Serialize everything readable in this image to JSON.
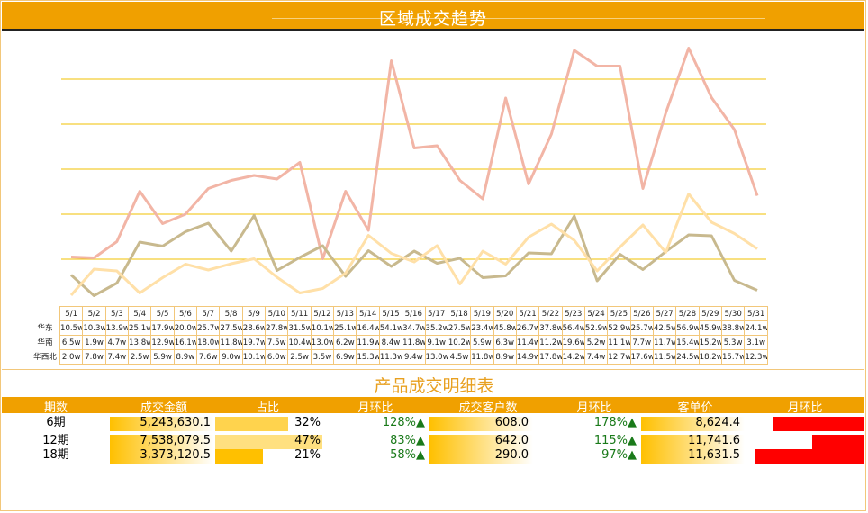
{
  "header": {
    "title": "区域成交趋势"
  },
  "chart_data": {
    "type": "line",
    "title": "区域成交趋势",
    "categories": [
      "5/1",
      "5/2",
      "5/3",
      "5/4",
      "5/5",
      "5/6",
      "5/7",
      "5/8",
      "5/9",
      "5/10",
      "5/11",
      "5/12",
      "5/13",
      "5/14",
      "5/15",
      "5/16",
      "5/17",
      "5/18",
      "5/19",
      "5/20",
      "5/21",
      "5/22",
      "5/23",
      "5/24",
      "5/25",
      "5/26",
      "5/27",
      "5/28",
      "5/29",
      "5/30",
      "5/31"
    ],
    "series": [
      {
        "name": "华东",
        "color": "#f2b5a6",
        "values": [
          10.5,
          10.3,
          13.9,
          25.1,
          17.9,
          20.0,
          25.7,
          27.5,
          28.6,
          27.8,
          31.5,
          10.1,
          25.1,
          16.4,
          54.1,
          34.7,
          35.2,
          27.5,
          23.4,
          45.8,
          26.7,
          37.8,
          56.4,
          52.9,
          52.9,
          25.7,
          42.5,
          56.9,
          45.9,
          38.8,
          24.1
        ],
        "labels": [
          "10.5w",
          "10.3w",
          "13.9w",
          "25.1w",
          "17.9w",
          "20.0w",
          "25.7w",
          "27.5w",
          "28.6w",
          "27.8w",
          "31.5w",
          "10.1w",
          "25.1w",
          "16.4w",
          "54.1w",
          "34.7w",
          "35.2w",
          "27.5w",
          "23.4w",
          "45.8w",
          "26.7w",
          "37.8w",
          "56.4w",
          "52.9w",
          "52.9w",
          "25.7w",
          "42.5w",
          "56.9w",
          "45.9w",
          "38.8w",
          "24.1w"
        ]
      },
      {
        "name": "华南",
        "color": "#c8b98e",
        "values": [
          6.5,
          1.9,
          4.7,
          13.8,
          12.9,
          16.1,
          18.0,
          11.8,
          19.7,
          7.5,
          10.4,
          13.0,
          6.2,
          11.9,
          8.4,
          11.8,
          9.1,
          10.2,
          5.9,
          6.3,
          11.4,
          11.2,
          19.6,
          5.2,
          11.1,
          7.7,
          11.7,
          15.4,
          15.2,
          5.3,
          3.1
        ],
        "labels": [
          "6.5w",
          "1.9w",
          "4.7w",
          "13.8w",
          "12.9w",
          "16.1w",
          "18.0w",
          "11.8w",
          "19.7w",
          "7.5w",
          "10.4w",
          "13.0w",
          "6.2w",
          "11.9w",
          "8.4w",
          "11.8w",
          "9.1w",
          "10.2w",
          "5.9w",
          "6.3w",
          "11.4w",
          "11.2w",
          "19.6w",
          "5.2w",
          "11.1w",
          "7.7w",
          "11.7w",
          "15.4w",
          "15.2w",
          "5.3w",
          "3.1w"
        ]
      },
      {
        "name": "华西北",
        "color": "#ffe0a8",
        "values": [
          2.0,
          7.8,
          7.4,
          2.5,
          5.9,
          8.9,
          7.6,
          9.0,
          10.1,
          6.0,
          2.5,
          3.5,
          6.9,
          15.3,
          11.3,
          9.4,
          13.0,
          4.5,
          11.8,
          8.9,
          14.9,
          17.8,
          14.2,
          7.4,
          12.7,
          17.6,
          11.5,
          24.5,
          18.2,
          15.7,
          12.3
        ],
        "labels": [
          "2.0w",
          "7.8w",
          "7.4w",
          "2.5w",
          "5.9w",
          "8.9w",
          "7.6w",
          "9.0w",
          "10.1w",
          "6.0w",
          "2.5w",
          "3.5w",
          "6.9w",
          "15.3w",
          "11.3w",
          "9.4w",
          "13.0w",
          "4.5w",
          "11.8w",
          "8.9w",
          "14.9w",
          "17.8w",
          "14.2w",
          "7.4w",
          "12.7w",
          "17.6w",
          "11.5w",
          "24.5w",
          "18.2w",
          "15.7w",
          "12.3w"
        ]
      }
    ],
    "ylim": [
      0,
      60
    ],
    "grid": true
  },
  "table_title": "产品成交明细表",
  "columns": [
    "期数",
    "成交金额",
    "占比",
    "月环比",
    "成交客户数",
    "月环比",
    "客单价",
    "月环比"
  ],
  "rows": [
    {
      "period": "6期",
      "amount": "5,243,630.1",
      "share": "32%",
      "mom1": "128%▲",
      "customers": "608.0",
      "mom2": "178%▲",
      "avg": "8,624.4",
      "mom3_fill": 0.8
    },
    {
      "period": "12期",
      "amount": "7,538,079.5",
      "share": "47%",
      "mom1": "83%▲",
      "customers": "642.0",
      "mom2": "115%▲",
      "avg": "11,741.6",
      "mom3_fill": 0.45
    },
    {
      "period": "18期",
      "amount": "3,373,120.5",
      "share": "21%",
      "mom1": "58%▲",
      "customers": "290.0",
      "mom2": "97%▲",
      "avg": "11,631.5",
      "mom3_fill": 0.95
    }
  ]
}
